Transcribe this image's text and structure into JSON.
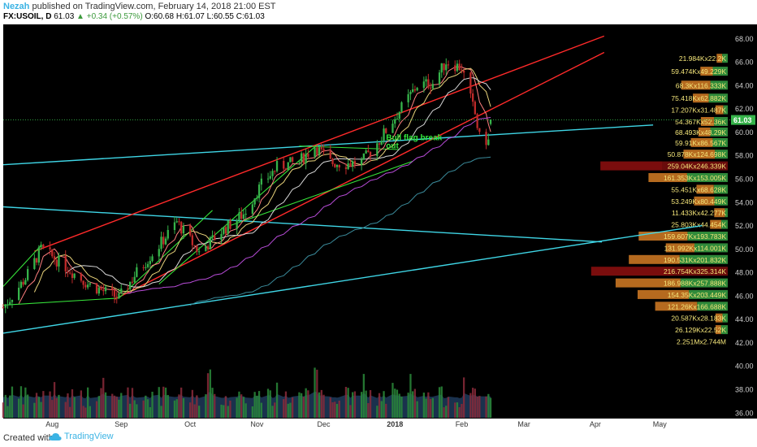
{
  "header": {
    "author": "Nezah",
    "published": "published on TradingView.com, February 14, 2018 21:00 EST",
    "symbol": "FX:USOIL, D",
    "last": "61.03",
    "change": "▲ +0.34 (+0.57%)",
    "ohlc": "O:60.68 H:61.07 L:60.55 C:61.03"
  },
  "footer": {
    "created_with": "Created with",
    "brand": "TradingView",
    "brand_icon": "cloud-logo-icon"
  },
  "colors": {
    "background": "#000000",
    "up": "#36b34a",
    "down": "#c02a2a",
    "resistance_line": "#ff2a2a",
    "support_line": "#3fd6e6",
    "flag_line": "#36e33a",
    "annotation": "#34e83c",
    "price_tag": "#36b34a",
    "volume_fill": "#1f3a5a"
  },
  "chart_data": {
    "type": "candlestick",
    "title": "",
    "y_axis": {
      "side": "right",
      "ylim": [
        35.5,
        69.2
      ],
      "ticks": [
        "68.00",
        "66.00",
        "64.00",
        "62.00",
        "60.00",
        "58.00",
        "56.00",
        "54.00",
        "52.00",
        "50.00",
        "48.00",
        "46.00",
        "44.00",
        "42.00",
        "40.00",
        "38.00",
        "36.00"
      ]
    },
    "x_axis": {
      "ticks": [
        "Aug",
        "Sep",
        "Oct",
        "Nov",
        "Dec",
        "2018",
        "Feb",
        "Mar",
        "Apr",
        "May"
      ]
    },
    "current_price": "61.03",
    "annotation": "Bull flag break out",
    "price_path": [
      {
        "date": "2017-07-10",
        "close": 45.0
      },
      {
        "date": "2017-07-20",
        "close": 47.5
      },
      {
        "date": "2017-07-27",
        "close": 50.0
      },
      {
        "date": "2017-08-07",
        "close": 48.5
      },
      {
        "date": "2017-08-17",
        "close": 47.0
      },
      {
        "date": "2017-08-31",
        "close": 45.8
      },
      {
        "date": "2017-09-08",
        "close": 48.0
      },
      {
        "date": "2017-09-18",
        "close": 50.3
      },
      {
        "date": "2017-09-26",
        "close": 52.3
      },
      {
        "date": "2017-10-06",
        "close": 49.7
      },
      {
        "date": "2017-10-16",
        "close": 51.5
      },
      {
        "date": "2017-10-26",
        "close": 53.0
      },
      {
        "date": "2017-11-03",
        "close": 55.5
      },
      {
        "date": "2017-11-10",
        "close": 57.0
      },
      {
        "date": "2017-11-20",
        "close": 57.5
      },
      {
        "date": "2017-11-27",
        "close": 58.8
      },
      {
        "date": "2017-12-04",
        "close": 57.4
      },
      {
        "date": "2017-12-11",
        "close": 57.3
      },
      {
        "date": "2017-12-18",
        "close": 57.4
      },
      {
        "date": "2017-12-26",
        "close": 59.3
      },
      {
        "date": "2018-01-04",
        "close": 61.8
      },
      {
        "date": "2018-01-12",
        "close": 64.0
      },
      {
        "date": "2018-01-19",
        "close": 64.2
      },
      {
        "date": "2018-01-25",
        "close": 66.0
      },
      {
        "date": "2018-02-01",
        "close": 65.5
      },
      {
        "date": "2018-02-07",
        "close": 61.5
      },
      {
        "date": "2018-02-09",
        "close": 59.5
      },
      {
        "date": "2018-02-13",
        "close": 59.2
      },
      {
        "date": "2018-02-14",
        "close": 61.03
      }
    ],
    "volume_profile": [
      {
        "price": 66.3,
        "label": "21.984Kx22.2K",
        "up": 21.984,
        "down": 22.2
      },
      {
        "price": 65.2,
        "label": "59.474Kx49.229K",
        "up": 59.474,
        "down": 49.229
      },
      {
        "price": 64.0,
        "label": "68.3Kx116.333K",
        "up": 68.3,
        "down": 116.333
      },
      {
        "price": 62.9,
        "label": "75.418Kx62.882K",
        "up": 75.418,
        "down": 62.882
      },
      {
        "price": 61.9,
        "label": "17.207Kx31.487K",
        "up": 17.207,
        "down": 31.487
      },
      {
        "price": 60.9,
        "label": "54.367Kx52.36K",
        "up": 54.367,
        "down": 52.36
      },
      {
        "price": 60.0,
        "label": "68.493Kx48.29K",
        "up": 68.493,
        "down": 48.29
      },
      {
        "price": 59.1,
        "label": "59.91Kx86.567K",
        "up": 59.91,
        "down": 86.567
      },
      {
        "price": 58.1,
        "label": "50.878Kx124.698K",
        "up": 50.878,
        "down": 124.698
      },
      {
        "price": 57.1,
        "label": "259.04Kx246.339K",
        "up": 259.04,
        "down": 246.339
      },
      {
        "price": 56.1,
        "label": "161.353Kx153.005K",
        "up": 161.353,
        "down": 153.005
      },
      {
        "price": 55.1,
        "label": "55.451Kx68.628K",
        "up": 55.451,
        "down": 68.628
      },
      {
        "price": 54.1,
        "label": "53.249Kx80.449K",
        "up": 53.249,
        "down": 80.449
      },
      {
        "price": 53.1,
        "label": "11.433Kx42.277K",
        "up": 11.433,
        "down": 42.277
      },
      {
        "price": 52.1,
        "label": "25.803Kx44.454K",
        "up": 25.803,
        "down": 44.454
      },
      {
        "price": 51.1,
        "label": "159.607Kx193.783K",
        "up": 159.607,
        "down": 193.783
      },
      {
        "price": 50.1,
        "label": "131.992Kx114.001K",
        "up": 131.992,
        "down": 114.001
      },
      {
        "price": 49.1,
        "label": "190.531Kx201.832K",
        "up": 190.531,
        "down": 201.832
      },
      {
        "price": 48.1,
        "label": "216.754Kx325.314K",
        "up": 216.754,
        "down": 325.314
      },
      {
        "price": 47.1,
        "label": "186.988Kx257.888K",
        "up": 186.988,
        "down": 257.888
      },
      {
        "price": 46.1,
        "label": "154.35Kx203.449K",
        "up": 154.35,
        "down": 203.449
      },
      {
        "price": 45.1,
        "label": "121.26Kx166.688K",
        "up": 121.26,
        "down": 166.688
      },
      {
        "price": 44.1,
        "label": "20.587Kx28.183K",
        "up": 20.587,
        "down": 28.183
      },
      {
        "price": 43.1,
        "label": "26.129Kx22.52K",
        "up": 26.129,
        "down": 22.52
      },
      {
        "price": 42.1,
        "label": "2.251Mx2.744M",
        "up": 2251,
        "down": 2744
      }
    ]
  }
}
